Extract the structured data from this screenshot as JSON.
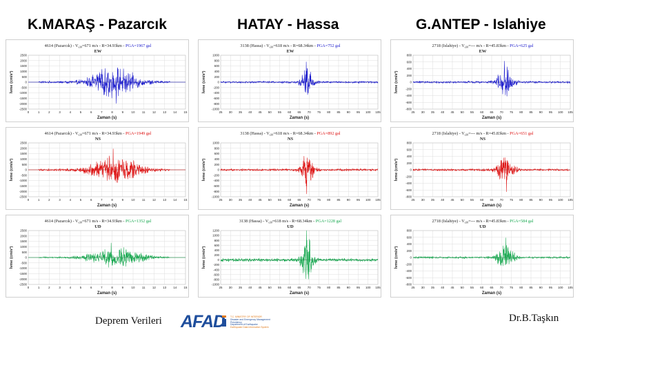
{
  "columns": [
    {
      "title": "K.MARAŞ - Pazarcık"
    },
    {
      "title": "HATAY - Hassa"
    },
    {
      "title": "G.ANTEP - Islahiye"
    }
  ],
  "footer": {
    "left_text": "Deprem Verileri",
    "logo_text": "AFAD",
    "logo_lines": [
      "T.C. MINISTRY OF INTERIOR",
      "Disaster and Emergency Management Presidency",
      "Department of Earthquake",
      "Earthquake Data Information System"
    ],
    "author": "Dr.B.Taşkın"
  },
  "chart_data": [
    {
      "type": "line",
      "station": "4614 (Pazarcık)",
      "vs30": "671",
      "distance": "34.93km",
      "pga": "1967 gal",
      "component": "EW",
      "color": "#1a1acc",
      "xlabel": "Zaman (s)",
      "ylabel": "İvme (cm/s²)",
      "xlim": [
        0,
        15
      ],
      "xticks": [
        0,
        1,
        2,
        3,
        4,
        5,
        6,
        7,
        8,
        9,
        10,
        11,
        12,
        13,
        14,
        15
      ],
      "ylim": [
        -2500,
        2500
      ],
      "yticks": [
        2500,
        2000,
        1500,
        1000,
        500,
        0,
        -500,
        -1000,
        -1500,
        -2000,
        -2500
      ],
      "signal": {
        "start": 1,
        "end": 13.5,
        "peak_time": 8.4,
        "peak_value": -1967,
        "envelope_center": 8.2,
        "envelope_width": 2.2
      }
    },
    {
      "type": "line",
      "station": "3138 (Hassa)",
      "vs30": "618",
      "distance": "68.34km",
      "pga": "752 gal",
      "component": "EW",
      "color": "#1a1acc",
      "xlabel": "Zaman (s)",
      "ylabel": "İvme (cm/s²)",
      "xlim": [
        25,
        105
      ],
      "xticks": [
        25,
        30,
        35,
        40,
        45,
        50,
        55,
        60,
        65,
        70,
        75,
        80,
        85,
        90,
        95,
        100,
        105
      ],
      "ylim": [
        -1000,
        1000
      ],
      "yticks": [
        1000,
        800,
        600,
        400,
        200,
        0,
        -200,
        -400,
        -600,
        -800,
        -1000
      ],
      "signal": {
        "start": 25,
        "end": 105,
        "peak_time": 68.6,
        "peak_value": 752,
        "envelope_center": 69,
        "envelope_width": 3
      }
    },
    {
      "type": "line",
      "station": "2718 (Islahiye)",
      "vs30": "---",
      "distance": "45.83km",
      "pga": "625 gal",
      "component": "EW",
      "color": "#1a1acc",
      "xlabel": "Zaman (s)",
      "ylabel": "İvme (cm/s²)",
      "xlim": [
        25,
        105
      ],
      "xticks": [
        25,
        30,
        35,
        40,
        45,
        50,
        55,
        60,
        65,
        70,
        75,
        80,
        85,
        90,
        95,
        100,
        105
      ],
      "ylim": [
        -800,
        800
      ],
      "yticks": [
        800,
        600,
        400,
        200,
        0,
        -200,
        -400,
        -600,
        -800
      ],
      "signal": {
        "start": 25,
        "end": 105,
        "peak_time": 71.5,
        "peak_value": 625,
        "envelope_center": 72,
        "envelope_width": 4
      }
    },
    {
      "type": "line",
      "station": "4614 (Pazarcık)",
      "vs30": "671",
      "distance": "34.93km",
      "pga": "1949 gal",
      "component": "NS",
      "color": "#dd1111",
      "xlabel": "Zaman (s)",
      "ylabel": "İvme (cm/s²)",
      "xlim": [
        0,
        15
      ],
      "xticks": [
        0,
        1,
        2,
        3,
        4,
        5,
        6,
        7,
        8,
        9,
        10,
        11,
        12,
        13,
        14,
        15
      ],
      "ylim": [
        -2500,
        2500
      ],
      "yticks": [
        2500,
        2000,
        1500,
        1000,
        500,
        0,
        -500,
        -1000,
        -1500,
        -2000,
        -2500
      ],
      "signal": {
        "start": 1,
        "end": 13.5,
        "peak_time": 8.1,
        "peak_value": 1949,
        "envelope_center": 8.3,
        "envelope_width": 2.3
      }
    },
    {
      "type": "line",
      "station": "3138 (Hassa)",
      "vs30": "618",
      "distance": "68.34km",
      "pga": "892 gal",
      "component": "NS",
      "color": "#dd1111",
      "xlabel": "Zaman (s)",
      "ylabel": "İvme (cm/s²)",
      "xlim": [
        25,
        105
      ],
      "xticks": [
        25,
        30,
        35,
        40,
        45,
        50,
        55,
        60,
        65,
        70,
        75,
        80,
        85,
        90,
        95,
        100,
        105
      ],
      "ylim": [
        -1000,
        1000
      ],
      "yticks": [
        1000,
        800,
        600,
        400,
        200,
        0,
        -200,
        -400,
        -600,
        -800,
        -1000
      ],
      "signal": {
        "start": 25,
        "end": 105,
        "peak_time": 68.8,
        "peak_value": -892,
        "envelope_center": 69,
        "envelope_width": 3
      }
    },
    {
      "type": "line",
      "station": "2718 (Islahiye)",
      "vs30": "---",
      "distance": "45.83km",
      "pga": "651 gal",
      "component": "NS",
      "color": "#dd1111",
      "xlabel": "Zaman (s)",
      "ylabel": "İvme (cm/s²)",
      "xlim": [
        25,
        105
      ],
      "xticks": [
        25,
        30,
        35,
        40,
        45,
        50,
        55,
        60,
        65,
        70,
        75,
        80,
        85,
        90,
        95,
        100,
        105
      ],
      "ylim": [
        -800,
        800
      ],
      "yticks": [
        800,
        600,
        400,
        200,
        0,
        -200,
        -400,
        -600,
        -800
      ],
      "signal": {
        "start": 25,
        "end": 105,
        "peak_time": 72.5,
        "peak_value": -651,
        "envelope_center": 72,
        "envelope_width": 4
      }
    },
    {
      "type": "line",
      "station": "4614 (Pazarcık)",
      "vs30": "671",
      "distance": "34.93km",
      "pga": "1352 gal",
      "component": "UD",
      "color": "#18a850",
      "xlabel": "Zaman (s)",
      "ylabel": "İvme (cm/s²)",
      "xlim": [
        0,
        15
      ],
      "xticks": [
        0,
        1,
        2,
        3,
        4,
        5,
        6,
        7,
        8,
        9,
        10,
        11,
        12,
        13,
        14,
        15
      ],
      "ylim": [
        -2500,
        2500
      ],
      "yticks": [
        2500,
        2000,
        1500,
        1000,
        500,
        0,
        -500,
        -1000,
        -1500,
        -2000,
        -2500
      ],
      "signal": {
        "start": 1,
        "end": 13.5,
        "peak_time": 7.9,
        "peak_value": 1352,
        "envelope_center": 8.3,
        "envelope_width": 2.5
      }
    },
    {
      "type": "line",
      "station": "3138 (Hassa)",
      "vs30": "618",
      "distance": "68.34km",
      "pga": "1228 gal",
      "component": "UD",
      "color": "#18a850",
      "xlabel": "Zaman (s)",
      "ylabel": "İvme (cm/s²)",
      "xlim": [
        25,
        105
      ],
      "xticks": [
        25,
        30,
        35,
        40,
        45,
        50,
        55,
        60,
        65,
        70,
        75,
        80,
        85,
        90,
        95,
        100,
        105
      ],
      "ylim": [
        -1000,
        1200
      ],
      "yticks": [
        1200,
        1000,
        800,
        600,
        400,
        200,
        0,
        -200,
        -400,
        -600,
        -800,
        -1000
      ],
      "signal": {
        "start": 25,
        "end": 105,
        "peak_time": 68.7,
        "peak_value": 1228,
        "envelope_center": 69,
        "envelope_width": 3
      }
    },
    {
      "type": "line",
      "station": "2718 (Islahiye)",
      "vs30": "---",
      "distance": "45.83km",
      "pga": "584 gal",
      "component": "UD",
      "color": "#18a850",
      "xlabel": "Zaman (s)",
      "ylabel": "İvme (cm/s²)",
      "xlim": [
        25,
        105
      ],
      "xticks": [
        25,
        30,
        35,
        40,
        45,
        50,
        55,
        60,
        65,
        70,
        75,
        80,
        85,
        90,
        95,
        100,
        105
      ],
      "ylim": [
        -800,
        800
      ],
      "yticks": [
        800,
        600,
        400,
        200,
        0,
        -200,
        -400,
        -600,
        -800
      ],
      "signal": {
        "start": 25,
        "end": 105,
        "peak_time": 72.2,
        "peak_value": 584,
        "envelope_center": 72,
        "envelope_width": 4
      }
    }
  ]
}
